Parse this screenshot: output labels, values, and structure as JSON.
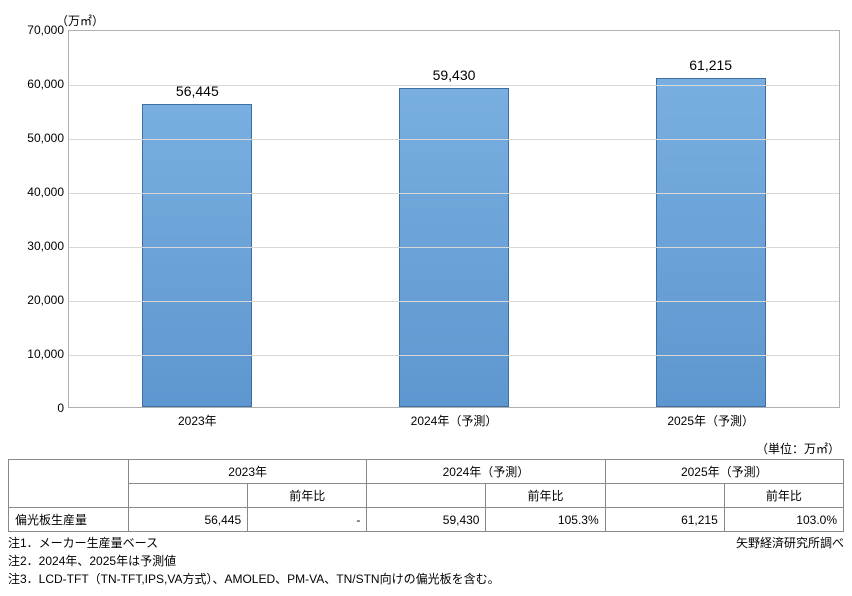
{
  "chart": {
    "type": "bar",
    "unit_label": "（万㎡）",
    "categories": [
      "2023年",
      "2024年（予測）",
      "2025年（予測）"
    ],
    "values": [
      56445,
      59430,
      61215
    ],
    "value_labels": [
      "56,445",
      "59,430",
      "61,215"
    ],
    "ymin": 0,
    "ymax": 70000,
    "ytick_step": 10000,
    "ytick_labels": [
      "0",
      "10,000",
      "20,000",
      "30,000",
      "40,000",
      "50,000",
      "60,000",
      "70,000"
    ],
    "bar_fill_top": "#79aee0",
    "bar_fill_bottom": "#5e97cf",
    "bar_border": "#3f6ea3",
    "grid_color": "#d8d8d8",
    "axis_color": "#b0b0b0",
    "value_fontsize": 14,
    "tick_fontsize": 12,
    "background_color": "#ffffff"
  },
  "table": {
    "unit_label": "（単位：万㎡）",
    "year_headers": [
      "2023年",
      "2024年（予測）",
      "2025年（予測）"
    ],
    "yoy_label": "前年比",
    "row_label": "偏光板生産量",
    "cells": {
      "v2023": "56,445",
      "y2023": "-",
      "v2024": "59,430",
      "y2024": "105.3%",
      "v2025": "61,215",
      "y2025": "103.0%"
    }
  },
  "footer": {
    "notes": [
      "注1．メーカー生産量ベース",
      "注2．2024年、2025年は予測値",
      "注3．LCD-TFT（TN-TFT,IPS,VA方式）、AMOLED、PM-VA、TN/STN向けの偏光板を含む。"
    ],
    "source": "矢野経済研究所調べ"
  }
}
